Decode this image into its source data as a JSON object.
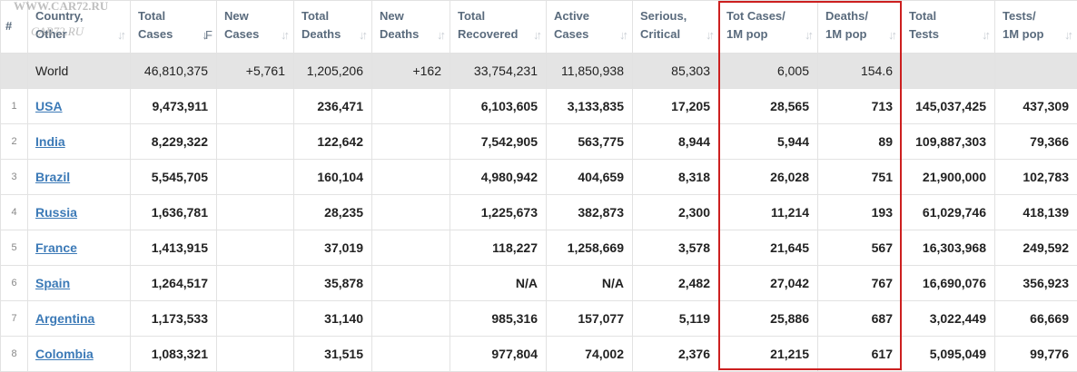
{
  "watermark": {
    "line1": "WWW.CAR72.RU",
    "line2": "CAR72.RU"
  },
  "header": {
    "num": "#",
    "columns": [
      {
        "line1": "Country,",
        "line2": "Other"
      },
      {
        "line1": "Total",
        "line2": "Cases"
      },
      {
        "line1": "New",
        "line2": "Cases"
      },
      {
        "line1": "Total",
        "line2": "Deaths"
      },
      {
        "line1": "New",
        "line2": "Deaths"
      },
      {
        "line1": "Total",
        "line2": "Recovered"
      },
      {
        "line1": "Active",
        "line2": "Cases"
      },
      {
        "line1": "Serious,",
        "line2": "Critical"
      },
      {
        "line1": "Tot Cases/",
        "line2": "1M pop"
      },
      {
        "line1": "Deaths/",
        "line2": "1M pop"
      },
      {
        "line1": "Total",
        "line2": "Tests"
      },
      {
        "line1": "Tests/",
        "line2": "1M pop"
      }
    ]
  },
  "world": {
    "country": "World",
    "total_cases": "46,810,375",
    "new_cases": "+5,761",
    "total_deaths": "1,205,206",
    "new_deaths": "+162",
    "total_recovered": "33,754,231",
    "active_cases": "11,850,938",
    "serious_critical": "85,303",
    "cases_per_1m": "6,005",
    "deaths_per_1m": "154.6",
    "total_tests": "",
    "tests_per_1m": ""
  },
  "rows": [
    {
      "num": "1",
      "country": "USA",
      "total_cases": "9,473,911",
      "new_cases": "",
      "total_deaths": "236,471",
      "new_deaths": "",
      "total_recovered": "6,103,605",
      "active_cases": "3,133,835",
      "serious_critical": "17,205",
      "cases_per_1m": "28,565",
      "deaths_per_1m": "713",
      "total_tests": "145,037,425",
      "tests_per_1m": "437,309"
    },
    {
      "num": "2",
      "country": "India",
      "total_cases": "8,229,322",
      "new_cases": "",
      "total_deaths": "122,642",
      "new_deaths": "",
      "total_recovered": "7,542,905",
      "active_cases": "563,775",
      "serious_critical": "8,944",
      "cases_per_1m": "5,944",
      "deaths_per_1m": "89",
      "total_tests": "109,887,303",
      "tests_per_1m": "79,366"
    },
    {
      "num": "3",
      "country": "Brazil",
      "total_cases": "5,545,705",
      "new_cases": "",
      "total_deaths": "160,104",
      "new_deaths": "",
      "total_recovered": "4,980,942",
      "active_cases": "404,659",
      "serious_critical": "8,318",
      "cases_per_1m": "26,028",
      "deaths_per_1m": "751",
      "total_tests": "21,900,000",
      "tests_per_1m": "102,783"
    },
    {
      "num": "4",
      "country": "Russia",
      "total_cases": "1,636,781",
      "new_cases": "",
      "total_deaths": "28,235",
      "new_deaths": "",
      "total_recovered": "1,225,673",
      "active_cases": "382,873",
      "serious_critical": "2,300",
      "cases_per_1m": "11,214",
      "deaths_per_1m": "193",
      "total_tests": "61,029,746",
      "tests_per_1m": "418,139"
    },
    {
      "num": "5",
      "country": "France",
      "total_cases": "1,413,915",
      "new_cases": "",
      "total_deaths": "37,019",
      "new_deaths": "",
      "total_recovered": "118,227",
      "active_cases": "1,258,669",
      "serious_critical": "3,578",
      "cases_per_1m": "21,645",
      "deaths_per_1m": "567",
      "total_tests": "16,303,968",
      "tests_per_1m": "249,592"
    },
    {
      "num": "6",
      "country": "Spain",
      "total_cases": "1,264,517",
      "new_cases": "",
      "total_deaths": "35,878",
      "new_deaths": "",
      "total_recovered": "N/A",
      "active_cases": "N/A",
      "serious_critical": "2,482",
      "cases_per_1m": "27,042",
      "deaths_per_1m": "767",
      "total_tests": "16,690,076",
      "tests_per_1m": "356,923"
    },
    {
      "num": "7",
      "country": "Argentina",
      "total_cases": "1,173,533",
      "new_cases": "",
      "total_deaths": "31,140",
      "new_deaths": "",
      "total_recovered": "985,316",
      "active_cases": "157,077",
      "serious_critical": "5,119",
      "cases_per_1m": "25,886",
      "deaths_per_1m": "687",
      "total_tests": "3,022,449",
      "tests_per_1m": "66,669"
    },
    {
      "num": "8",
      "country": "Colombia",
      "total_cases": "1,083,321",
      "new_cases": "",
      "total_deaths": "31,515",
      "new_deaths": "",
      "total_recovered": "977,804",
      "active_cases": "74,002",
      "serious_critical": "2,376",
      "cases_per_1m": "21,215",
      "deaths_per_1m": "617",
      "total_tests": "5,095,049",
      "tests_per_1m": "99,776"
    }
  ],
  "colors": {
    "link": "#3c7ab7",
    "highlight_border": "#cc1f1f",
    "world_row_bg": "#e4e4e4",
    "header_text": "#5a6b7d"
  },
  "sort": {
    "active_column": "total_cases",
    "icons": "sort-arrows-icon"
  }
}
